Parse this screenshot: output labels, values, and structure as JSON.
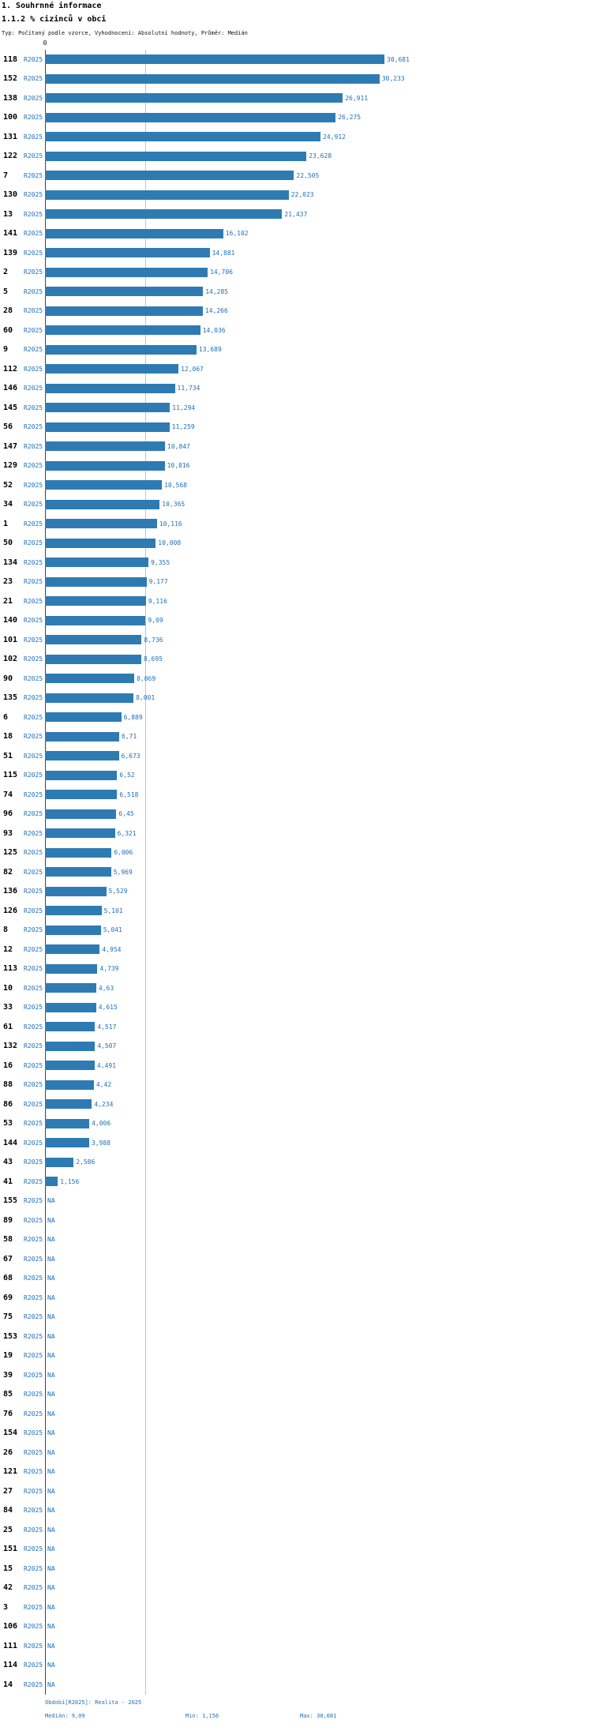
{
  "titles": {
    "section": "1. Souhrnné informace",
    "indicator": "1.1.2 % cizinců v obci",
    "meta": "Typ: Počítaný podle vzorce, Vyhodnocení: Absolutní hodnoty, Průměr: Medián"
  },
  "footer": {
    "period": "Období[R2025]: Realita - 2025",
    "median": "Medián: 9,09",
    "min": "Min: 1,156",
    "max": "Max: 30,681"
  },
  "colors": {
    "bar": "#2e7bb4",
    "accent_text": "#1e6fba",
    "median_line": "#b6c6d6",
    "axis_line": "#444444"
  },
  "chart_data": {
    "type": "bar",
    "orientation": "horizontal",
    "title": "1.1.2 % cizinců v obci",
    "series_label": "R2025",
    "value_axis": {
      "zero_label": "0",
      "min": 0
    },
    "stats": {
      "median": 9.09,
      "min": 1.156,
      "max": 30.681
    },
    "legend": "none",
    "rows": [
      {
        "id": "118",
        "value": 30.681,
        "label": "30,681"
      },
      {
        "id": "152",
        "value": 30.233,
        "label": "30,233"
      },
      {
        "id": "138",
        "value": 26.911,
        "label": "26,911"
      },
      {
        "id": "100",
        "value": 26.275,
        "label": "26,275"
      },
      {
        "id": "131",
        "value": 24.912,
        "label": "24,912"
      },
      {
        "id": "122",
        "value": 23.628,
        "label": "23,628"
      },
      {
        "id": "7",
        "value": 22.505,
        "label": "22,505"
      },
      {
        "id": "130",
        "value": 22.023,
        "label": "22,023"
      },
      {
        "id": "13",
        "value": 21.437,
        "label": "21,437"
      },
      {
        "id": "141",
        "value": 16.102,
        "label": "16,102"
      },
      {
        "id": "139",
        "value": 14.881,
        "label": "14,881"
      },
      {
        "id": "2",
        "value": 14.706,
        "label": "14,706"
      },
      {
        "id": "5",
        "value": 14.285,
        "label": "14,285"
      },
      {
        "id": "28",
        "value": 14.266,
        "label": "14,266"
      },
      {
        "id": "60",
        "value": 14.036,
        "label": "14,036"
      },
      {
        "id": "9",
        "value": 13.689,
        "label": "13,689"
      },
      {
        "id": "112",
        "value": 12.067,
        "label": "12,067"
      },
      {
        "id": "146",
        "value": 11.734,
        "label": "11,734"
      },
      {
        "id": "145",
        "value": 11.294,
        "label": "11,294"
      },
      {
        "id": "56",
        "value": 11.259,
        "label": "11,259"
      },
      {
        "id": "147",
        "value": 10.847,
        "label": "10,847"
      },
      {
        "id": "129",
        "value": 10.816,
        "label": "10,816"
      },
      {
        "id": "52",
        "value": 10.568,
        "label": "10,568"
      },
      {
        "id": "34",
        "value": 10.365,
        "label": "10,365"
      },
      {
        "id": "1",
        "value": 10.116,
        "label": "10,116"
      },
      {
        "id": "50",
        "value": 10.008,
        "label": "10,008"
      },
      {
        "id": "134",
        "value": 9.355,
        "label": "9,355"
      },
      {
        "id": "23",
        "value": 9.177,
        "label": "9,177"
      },
      {
        "id": "21",
        "value": 9.116,
        "label": "9,116"
      },
      {
        "id": "140",
        "value": 9.09,
        "label": "9,09"
      },
      {
        "id": "101",
        "value": 8.736,
        "label": "8,736"
      },
      {
        "id": "102",
        "value": 8.695,
        "label": "8,695"
      },
      {
        "id": "90",
        "value": 8.069,
        "label": "8,069"
      },
      {
        "id": "135",
        "value": 8.001,
        "label": "8,001"
      },
      {
        "id": "6",
        "value": 6.889,
        "label": "6,889"
      },
      {
        "id": "18",
        "value": 6.71,
        "label": "6,71"
      },
      {
        "id": "51",
        "value": 6.673,
        "label": "6,673"
      },
      {
        "id": "115",
        "value": 6.52,
        "label": "6,52"
      },
      {
        "id": "74",
        "value": 6.518,
        "label": "6,518"
      },
      {
        "id": "96",
        "value": 6.45,
        "label": "6,45"
      },
      {
        "id": "93",
        "value": 6.321,
        "label": "6,321"
      },
      {
        "id": "125",
        "value": 6.006,
        "label": "6,006"
      },
      {
        "id": "82",
        "value": 5.969,
        "label": "5,969"
      },
      {
        "id": "136",
        "value": 5.529,
        "label": "5,529"
      },
      {
        "id": "126",
        "value": 5.101,
        "label": "5,101"
      },
      {
        "id": "8",
        "value": 5.041,
        "label": "5,041"
      },
      {
        "id": "12",
        "value": 4.954,
        "label": "4,954"
      },
      {
        "id": "113",
        "value": 4.739,
        "label": "4,739"
      },
      {
        "id": "10",
        "value": 4.63,
        "label": "4,63"
      },
      {
        "id": "33",
        "value": 4.615,
        "label": "4,615"
      },
      {
        "id": "61",
        "value": 4.517,
        "label": "4,517"
      },
      {
        "id": "132",
        "value": 4.507,
        "label": "4,507"
      },
      {
        "id": "16",
        "value": 4.491,
        "label": "4,491"
      },
      {
        "id": "88",
        "value": 4.42,
        "label": "4,42"
      },
      {
        "id": "86",
        "value": 4.234,
        "label": "4,234"
      },
      {
        "id": "53",
        "value": 4.006,
        "label": "4,006"
      },
      {
        "id": "144",
        "value": 3.988,
        "label": "3,988"
      },
      {
        "id": "43",
        "value": 2.586,
        "label": "2,586"
      },
      {
        "id": "41",
        "value": 1.156,
        "label": "1,156"
      },
      {
        "id": "155",
        "value": null,
        "label": "NA"
      },
      {
        "id": "89",
        "value": null,
        "label": "NA"
      },
      {
        "id": "58",
        "value": null,
        "label": "NA"
      },
      {
        "id": "67",
        "value": null,
        "label": "NA"
      },
      {
        "id": "68",
        "value": null,
        "label": "NA"
      },
      {
        "id": "69",
        "value": null,
        "label": "NA"
      },
      {
        "id": "75",
        "value": null,
        "label": "NA"
      },
      {
        "id": "153",
        "value": null,
        "label": "NA"
      },
      {
        "id": "19",
        "value": null,
        "label": "NA"
      },
      {
        "id": "39",
        "value": null,
        "label": "NA"
      },
      {
        "id": "85",
        "value": null,
        "label": "NA"
      },
      {
        "id": "76",
        "value": null,
        "label": "NA"
      },
      {
        "id": "154",
        "value": null,
        "label": "NA"
      },
      {
        "id": "26",
        "value": null,
        "label": "NA"
      },
      {
        "id": "121",
        "value": null,
        "label": "NA"
      },
      {
        "id": "27",
        "value": null,
        "label": "NA"
      },
      {
        "id": "84",
        "value": null,
        "label": "NA"
      },
      {
        "id": "25",
        "value": null,
        "label": "NA"
      },
      {
        "id": "151",
        "value": null,
        "label": "NA"
      },
      {
        "id": "15",
        "value": null,
        "label": "NA"
      },
      {
        "id": "42",
        "value": null,
        "label": "NA"
      },
      {
        "id": "3",
        "value": null,
        "label": "NA"
      },
      {
        "id": "106",
        "value": null,
        "label": "NA"
      },
      {
        "id": "111",
        "value": null,
        "label": "NA"
      },
      {
        "id": "114",
        "value": null,
        "label": "NA"
      },
      {
        "id": "14",
        "value": null,
        "label": "NA"
      }
    ]
  }
}
